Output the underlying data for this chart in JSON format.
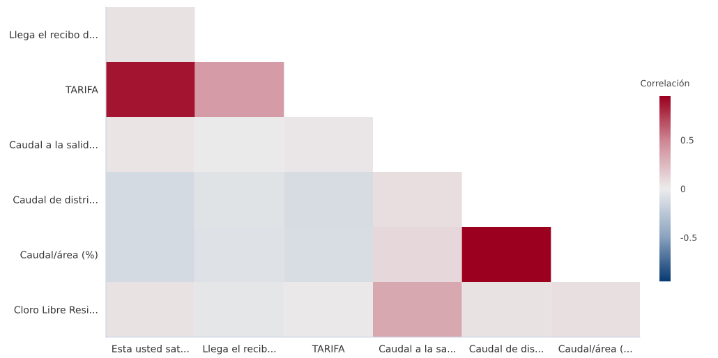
{
  "chart_data": {
    "type": "heatmap",
    "clabel": "Correlación",
    "categories": [
      "Esta usted sat...",
      "Llega el recib...",
      "TARIFA",
      "Caudal a la sa...",
      "Caudal de dis...",
      "Caudal/área (..."
    ],
    "y_categories": [
      "Llega el recibo d...",
      "TARIFA",
      "Caudal a la salid...",
      "Caudal de distri...",
      "Caudal/área (%)",
      "Cloro Libre Resi..."
    ],
    "cells": [
      [
        0.05,
        null,
        null,
        null,
        null,
        null
      ],
      [
        0.88,
        0.4,
        null,
        null,
        null,
        null
      ],
      [
        0.04,
        0.01,
        0.03,
        null,
        null,
        null
      ],
      [
        -0.12,
        -0.06,
        -0.11,
        0.07,
        null,
        null
      ],
      [
        -0.12,
        -0.07,
        -0.1,
        0.1,
        0.95,
        null
      ],
      [
        0.05,
        -0.04,
        0.02,
        0.33,
        0.05,
        0.06
      ]
    ],
    "clim": [
      -0.95,
      0.95
    ],
    "cticks": [
      -0.5,
      0,
      0.5
    ]
  }
}
